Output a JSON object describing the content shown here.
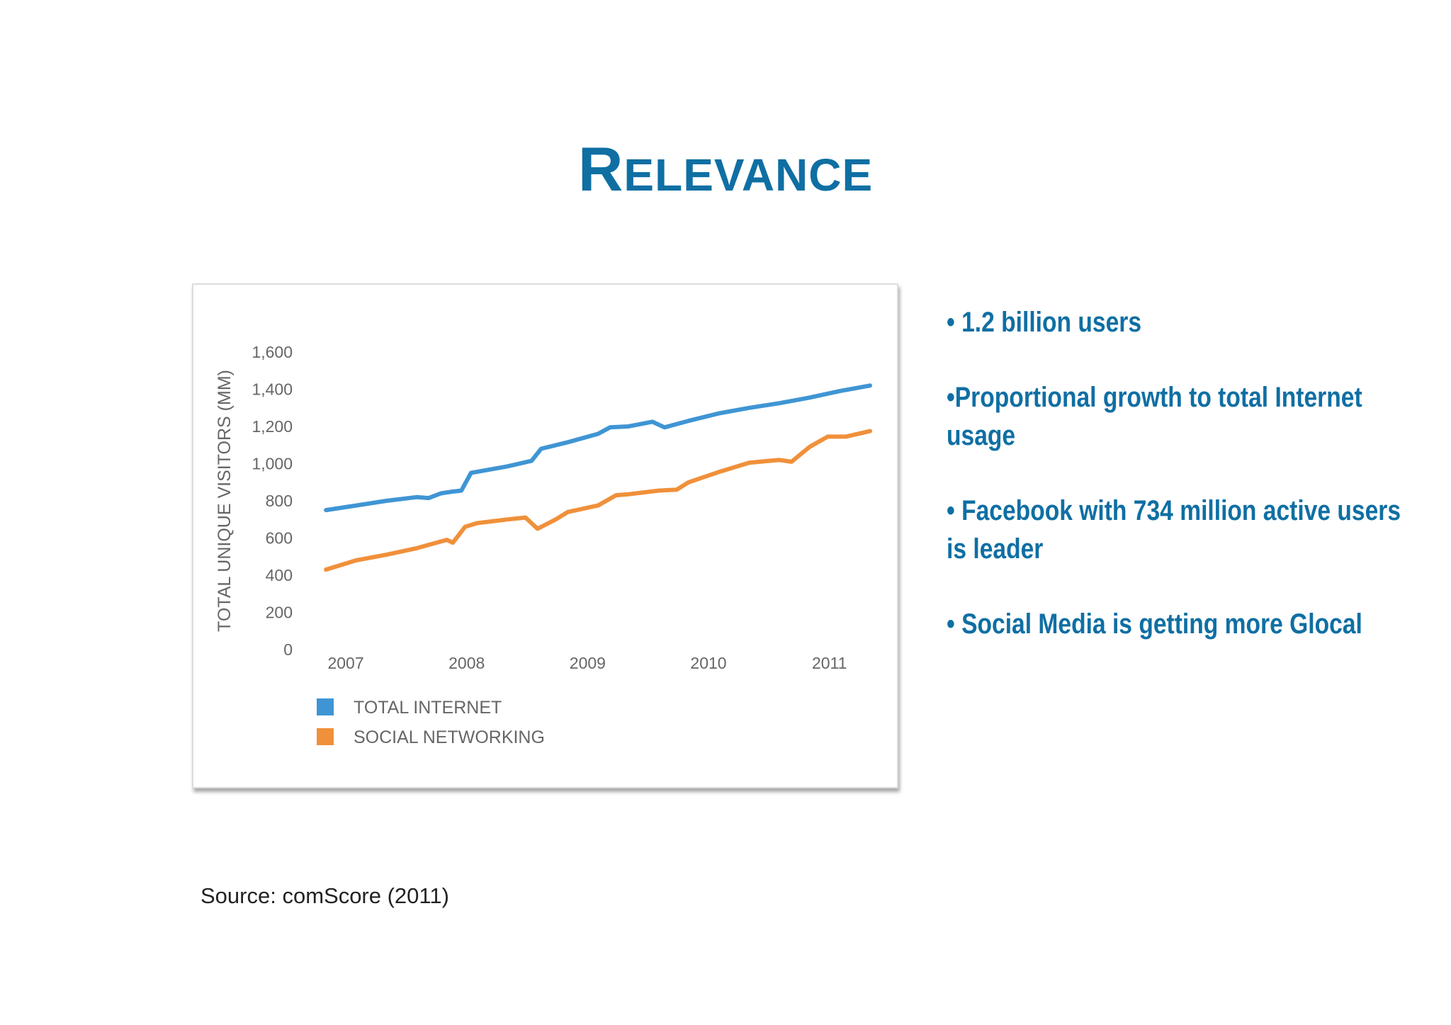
{
  "slide": {
    "title_first": "R",
    "title_rest": "ELEVANCE",
    "source": "Source: comScore (2011)"
  },
  "bullets": [
    "• 1.2 billion users",
    "•Proportional growth to total Internet usage",
    "• Facebook with 734 million active users is leader",
    "• Social Media is getting more Glocal"
  ],
  "colors": {
    "title": "#0f6fa3",
    "total_internet": "#3f95d4",
    "social_networking": "#f0903a"
  },
  "chart_data": {
    "type": "line",
    "title": "",
    "xlabel": "",
    "ylabel": "TOTAL UNIQUE VISITORS (MM)",
    "ylim": [
      0,
      1600
    ],
    "yticks": [
      "0",
      "200",
      "400",
      "600",
      "800",
      "1,000",
      "1,200",
      "1,400",
      "1,600"
    ],
    "ytick_values": [
      0,
      200,
      400,
      600,
      800,
      1000,
      1200,
      1400,
      1600
    ],
    "xticks": [
      "2007",
      "2008",
      "2009",
      "2010",
      "2011"
    ],
    "xtick_values": [
      2007,
      2008,
      2009,
      2010,
      2011
    ],
    "xlim": [
      2006.9,
      2011.5
    ],
    "grid": false,
    "legend_position": "bottom-left",
    "series": [
      {
        "name": "TOTAL INTERNET",
        "color": "#3f95d4",
        "x": [
          2007.0,
          2007.25,
          2007.5,
          2007.75,
          2007.85,
          2007.95,
          2008.05,
          2008.12,
          2008.2,
          2008.5,
          2008.7,
          2008.78,
          2009.0,
          2009.25,
          2009.35,
          2009.5,
          2009.7,
          2009.8,
          2010.0,
          2010.25,
          2010.5,
          2010.75,
          2011.0,
          2011.25,
          2011.5
        ],
        "values": [
          750,
          775,
          800,
          820,
          815,
          840,
          850,
          855,
          950,
          985,
          1015,
          1080,
          1115,
          1160,
          1195,
          1200,
          1225,
          1195,
          1230,
          1270,
          1300,
          1325,
          1355,
          1390,
          1420
        ]
      },
      {
        "name": "SOCIAL NETWORKING",
        "color": "#f0903a",
        "x": [
          2007.0,
          2007.25,
          2007.5,
          2007.75,
          2008.0,
          2008.05,
          2008.15,
          2008.25,
          2008.5,
          2008.65,
          2008.75,
          2008.9,
          2009.0,
          2009.25,
          2009.4,
          2009.5,
          2009.75,
          2009.9,
          2010.0,
          2010.25,
          2010.5,
          2010.75,
          2010.85,
          2011.0,
          2011.15,
          2011.3,
          2011.5
        ],
        "values": [
          430,
          480,
          510,
          545,
          590,
          575,
          660,
          680,
          700,
          710,
          650,
          700,
          740,
          775,
          830,
          835,
          855,
          860,
          900,
          955,
          1005,
          1020,
          1010,
          1090,
          1145,
          1145,
          1175
        ]
      }
    ]
  }
}
